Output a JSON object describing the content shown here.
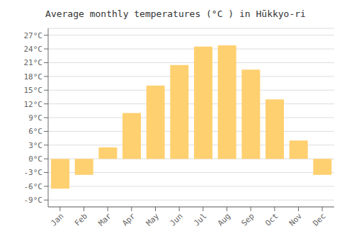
{
  "chart_data": {
    "type": "bar",
    "title": "Average monthly temperatures (°C ) in Hūkkyo-ri",
    "categories": [
      "Jan",
      "Feb",
      "Mar",
      "Apr",
      "May",
      "Jun",
      "Jul",
      "Aug",
      "Sep",
      "Oct",
      "Nov",
      "Dec"
    ],
    "values": [
      -6.5,
      -3.5,
      2.5,
      10.0,
      16.0,
      20.5,
      24.5,
      24.8,
      19.5,
      13.0,
      4.0,
      -3.5
    ],
    "color": "#FFD070",
    "ylim": [
      -10.5,
      28.5
    ],
    "yticks": [
      {
        "value": -9,
        "label": "-9°C"
      },
      {
        "value": -6,
        "label": "-6°C"
      },
      {
        "value": -3,
        "label": "-3°C"
      },
      {
        "value": 0,
        "label": "0°C"
      },
      {
        "value": 3,
        "label": "3°C"
      },
      {
        "value": 6,
        "label": "6°C"
      },
      {
        "value": 9,
        "label": "9°C"
      },
      {
        "value": 12,
        "label": "12°C"
      },
      {
        "value": 15,
        "label": "15°C"
      },
      {
        "value": 18,
        "label": "18°C"
      },
      {
        "value": 21,
        "label": "21°C"
      },
      {
        "value": 24,
        "label": "24°C"
      },
      {
        "value": 27,
        "label": "27°C"
      }
    ],
    "grid": true
  }
}
